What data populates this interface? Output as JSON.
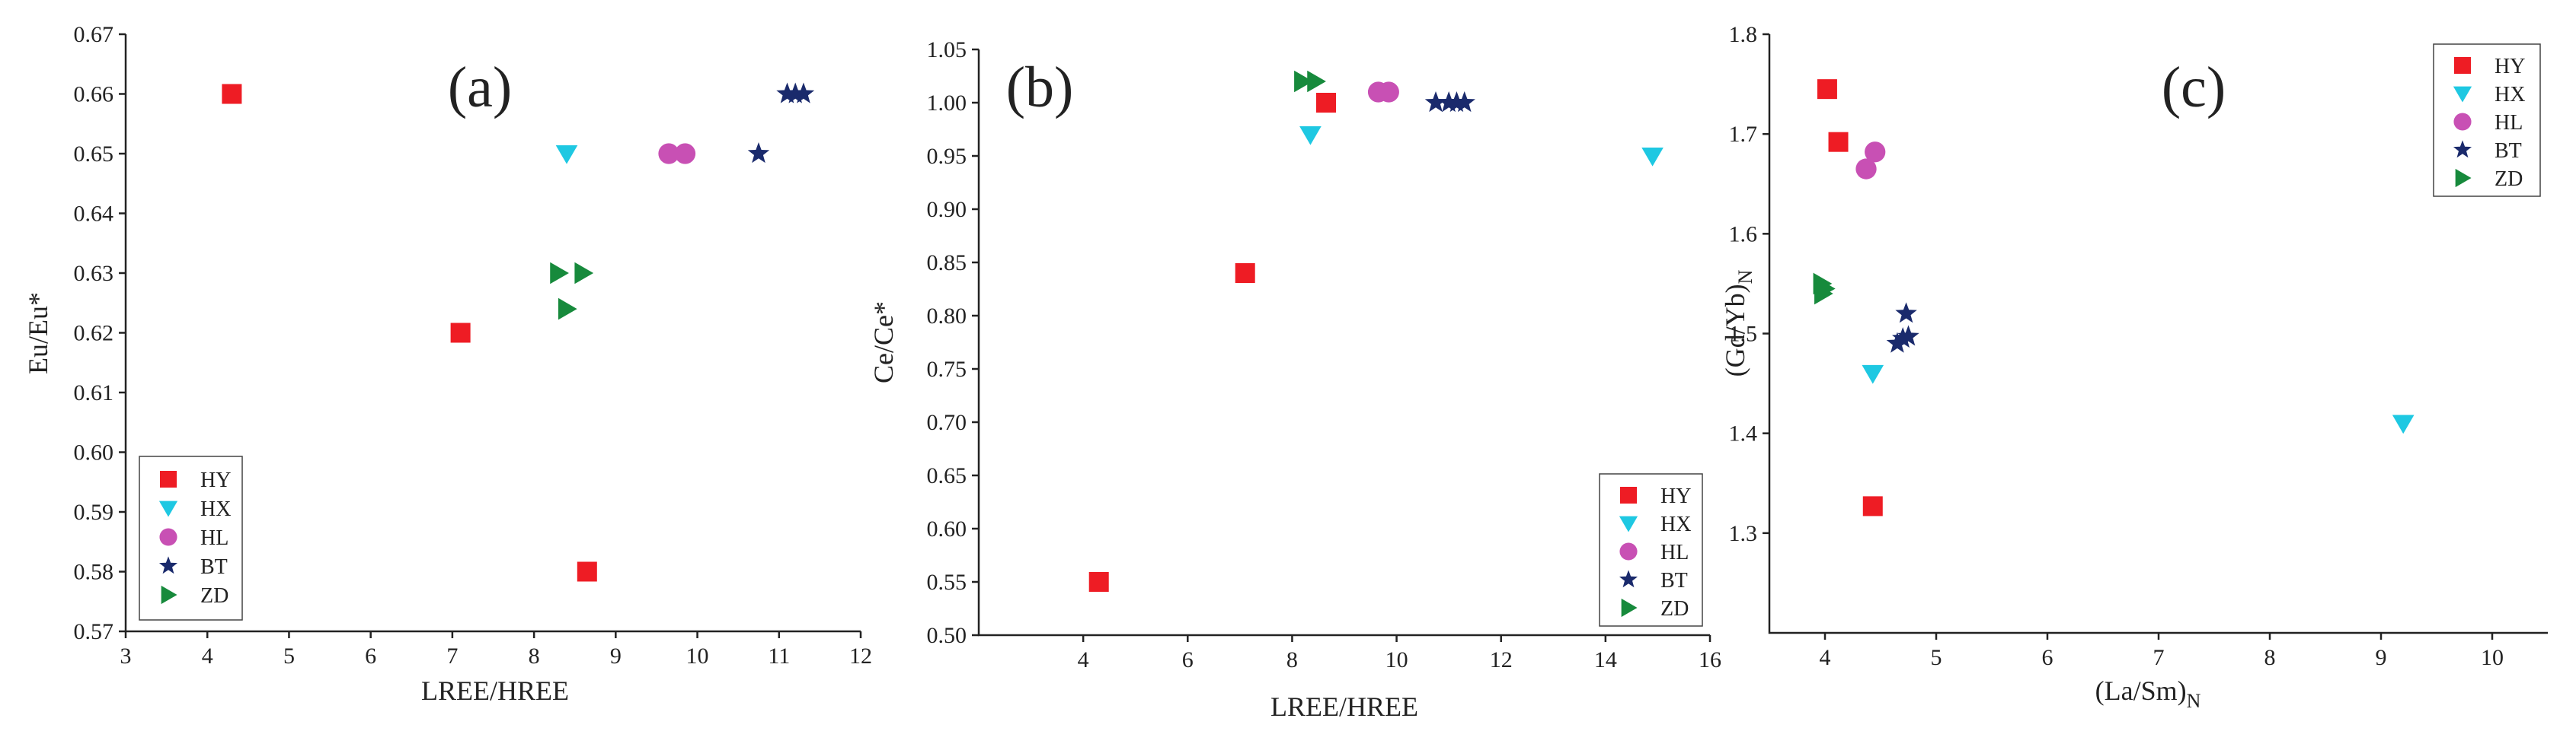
{
  "colors": {
    "HY": "#ee1c24",
    "HX": "#1ec8e2",
    "HL": "#c850b4",
    "BT": "#1a2a6c",
    "ZD": "#178a3c"
  },
  "legend_entries": [
    "HY",
    "HX",
    "HL",
    "BT",
    "ZD"
  ],
  "chart_data": [
    {
      "id": "a",
      "type": "scatter",
      "title": "(a)",
      "xlabel": "LREE/HREE",
      "ylabel": "Eu/Eu*",
      "xlim": [
        3,
        12
      ],
      "ylim": [
        0.57,
        0.67
      ],
      "xticks": [
        "3",
        "4",
        "5",
        "6",
        "7",
        "8",
        "9",
        "10",
        "11",
        "12"
      ],
      "yticks": [
        "0.57",
        "0.58",
        "0.59",
        "0.60",
        "0.61",
        "0.62",
        "0.63",
        "0.64",
        "0.65",
        "0.66",
        "0.67"
      ],
      "legend_position": "bottom-left",
      "series": [
        {
          "name": "HY",
          "marker": "square",
          "points": [
            [
              4.3,
              0.66
            ],
            [
              7.1,
              0.62
            ],
            [
              8.65,
              0.58
            ]
          ]
        },
        {
          "name": "HX",
          "marker": "triangle-down",
          "points": [
            [
              8.4,
              0.65
            ]
          ]
        },
        {
          "name": "HL",
          "marker": "circle",
          "points": [
            [
              9.65,
              0.65
            ],
            [
              9.85,
              0.65
            ]
          ]
        },
        {
          "name": "BT",
          "marker": "star",
          "points": [
            [
              10.75,
              0.65
            ],
            [
              11.1,
              0.66
            ],
            [
              11.2,
              0.66
            ],
            [
              11.3,
              0.66
            ]
          ]
        },
        {
          "name": "ZD",
          "marker": "triangle-right",
          "points": [
            [
              8.3,
              0.63
            ],
            [
              8.6,
              0.63
            ],
            [
              8.4,
              0.624
            ]
          ]
        }
      ]
    },
    {
      "id": "b",
      "type": "scatter",
      "title": "(b)",
      "xlabel": "LREE/HREE",
      "ylabel": "Ce/Ce*",
      "xlim": [
        2,
        16
      ],
      "ylim": [
        0.5,
        1.05
      ],
      "xticks": [
        "4",
        "6",
        "8",
        "10",
        "12",
        "14",
        "16"
      ],
      "yticks": [
        "0.50",
        "0.55",
        "0.60",
        "0.65",
        "0.70",
        "0.75",
        "0.80",
        "0.85",
        "0.90",
        "0.95",
        "1.00",
        "1.05"
      ],
      "legend_position": "bottom-right",
      "series": [
        {
          "name": "HY",
          "marker": "square",
          "points": [
            [
              4.3,
              0.55
            ],
            [
              7.1,
              0.84
            ],
            [
              8.65,
              1.0
            ]
          ]
        },
        {
          "name": "HX",
          "marker": "triangle-down",
          "points": [
            [
              8.35,
              0.97
            ],
            [
              14.9,
              0.95
            ]
          ]
        },
        {
          "name": "HL",
          "marker": "circle",
          "points": [
            [
              9.65,
              1.01
            ],
            [
              9.85,
              1.01
            ]
          ]
        },
        {
          "name": "BT",
          "marker": "star",
          "points": [
            [
              10.75,
              1.0
            ],
            [
              11.0,
              1.0
            ],
            [
              11.15,
              1.0
            ],
            [
              11.3,
              1.0
            ]
          ]
        },
        {
          "name": "ZD",
          "marker": "triangle-right",
          "points": [
            [
              8.2,
              1.02
            ],
            [
              8.45,
              1.02
            ]
          ]
        }
      ]
    },
    {
      "id": "c",
      "type": "scatter",
      "title": "(c)",
      "xlabel": "(La/Sm)",
      "xlabel_sub": "N",
      "ylabel": "(Gd/Yb)",
      "ylabel_sub": "N",
      "xlim": [
        3.5,
        10.5
      ],
      "ylim": [
        1.2,
        1.8
      ],
      "xticks": [
        "4",
        "5",
        "6",
        "7",
        "8",
        "9",
        "10"
      ],
      "yticks": [
        "1.3",
        "1.4",
        "1.5",
        "1.6",
        "1.7",
        "1.8"
      ],
      "legend_position": "top-right",
      "series": [
        {
          "name": "HY",
          "marker": "square",
          "points": [
            [
              4.02,
              1.745
            ],
            [
              4.12,
              1.692
            ],
            [
              4.43,
              1.327
            ]
          ]
        },
        {
          "name": "HX",
          "marker": "triangle-down",
          "points": [
            [
              4.43,
              1.46
            ],
            [
              9.2,
              1.41
            ]
          ]
        },
        {
          "name": "HL",
          "marker": "circle",
          "points": [
            [
              4.37,
              1.665
            ],
            [
              4.45,
              1.682
            ]
          ]
        },
        {
          "name": "BT",
          "marker": "star",
          "points": [
            [
              4.65,
              1.49
            ],
            [
              4.7,
              1.495
            ],
            [
              4.75,
              1.497
            ],
            [
              4.73,
              1.52
            ]
          ]
        },
        {
          "name": "ZD",
          "marker": "triangle-right",
          "points": [
            [
              3.97,
              1.55
            ],
            [
              4.0,
              1.545
            ],
            [
              3.98,
              1.54
            ]
          ]
        }
      ]
    }
  ]
}
